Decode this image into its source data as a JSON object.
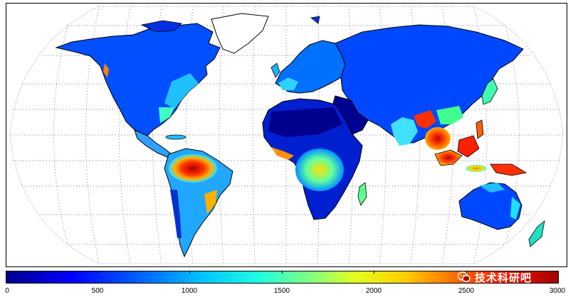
{
  "map": {
    "projection": "robinson",
    "graticule": "dotted",
    "colormap": "jet",
    "land_color_scale": [
      "#00008f",
      "#0000ff",
      "#00c8ff",
      "#80ff80",
      "#ffd000",
      "#ff1a00",
      "#a00000"
    ],
    "ocean_color": "#ffffff"
  },
  "colorbar": {
    "min": 0,
    "max": 3000,
    "ticks": [
      "0",
      "500",
      "1000",
      "1500",
      "2000",
      "2500",
      "3000"
    ]
  },
  "watermark": {
    "text": "技术科研吧",
    "icon": "wechat-icon"
  }
}
